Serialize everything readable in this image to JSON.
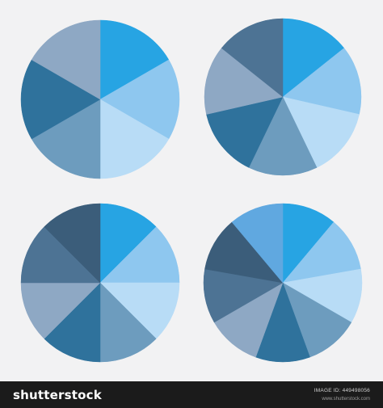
{
  "chart_data": [
    {
      "type": "pie",
      "title": "",
      "categories": [
        "",
        "",
        "",
        "",
        "",
        ""
      ],
      "values": [
        1,
        1,
        1,
        1,
        1,
        1
      ],
      "colors": [
        "#27a4e3",
        "#8ec7ef",
        "#b8dcf6",
        "#6d9cbe",
        "#2f729c",
        "#8ea8c4"
      ]
    },
    {
      "type": "pie",
      "title": "",
      "categories": [
        "",
        "",
        "",
        "",
        "",
        "",
        ""
      ],
      "values": [
        1,
        1,
        1,
        1,
        1,
        1,
        1
      ],
      "colors": [
        "#27a4e3",
        "#8ec7ef",
        "#b8dcf6",
        "#6d9cbe",
        "#2f729c",
        "#8ea8c4",
        "#4d7394"
      ]
    },
    {
      "type": "pie",
      "title": "",
      "categories": [
        "",
        "",
        "",
        "",
        "",
        "",
        "",
        ""
      ],
      "values": [
        1,
        1,
        1,
        1,
        1,
        1,
        1,
        1
      ],
      "colors": [
        "#27a4e3",
        "#8ec7ef",
        "#b8dcf6",
        "#6d9cbe",
        "#2f729c",
        "#8ea8c4",
        "#4d7394",
        "#3b5d7a"
      ]
    },
    {
      "type": "pie",
      "title": "",
      "categories": [
        "",
        "",
        "",
        "",
        "",
        "",
        "",
        "",
        ""
      ],
      "values": [
        1,
        1,
        1,
        1,
        1,
        1,
        1,
        1,
        1
      ],
      "colors": [
        "#27a4e3",
        "#8ec7ef",
        "#b8dcf6",
        "#6d9cbe",
        "#2f729c",
        "#8ea8c4",
        "#4d7394",
        "#3b5d7a",
        "#60a8e0"
      ]
    }
  ],
  "footer": {
    "brand": "shutterstock",
    "image_id": "IMAGE ID: 449498056",
    "site": "www.shutterstock.com"
  }
}
